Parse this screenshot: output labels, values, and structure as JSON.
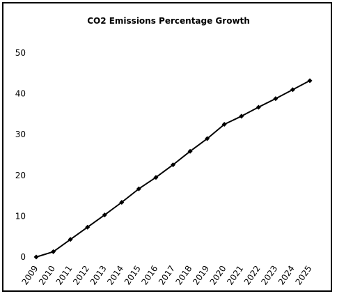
{
  "chart_data": {
    "type": "line",
    "title": "CO2 Emissions Percentage Growth",
    "xlabel": "",
    "ylabel": "",
    "x": [
      "2009",
      "2010",
      "2011",
      "2012",
      "2013",
      "2014",
      "2015",
      "2016",
      "2017",
      "2018",
      "2019",
      "2020",
      "2021",
      "2022",
      "2023",
      "2024",
      "2025"
    ],
    "series": [
      {
        "values": [
          0,
          1.3,
          4.3,
          7.3,
          10.3,
          13.4,
          16.7,
          19.5,
          22.6,
          25.9,
          29.0,
          32.5,
          34.5,
          36.7,
          38.8,
          41.0,
          43.2
        ]
      }
    ],
    "ylim": [
      0,
      50
    ],
    "yticks": [
      0,
      10,
      20,
      30,
      40,
      50
    ],
    "grid": false,
    "legend": "none",
    "line_color": "#000000",
    "marker": "diamond"
  }
}
